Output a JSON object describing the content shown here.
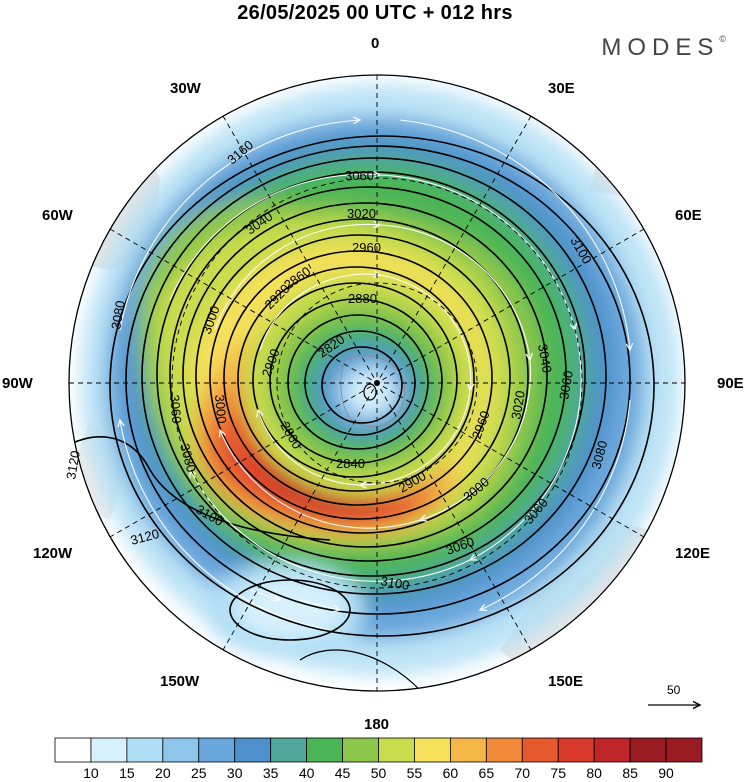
{
  "header": {
    "title": "26/05/2025  00 UTC  + 012 hrs",
    "brand": "MODES",
    "brand_mark": "©"
  },
  "map": {
    "projection": "polar-stereographic-south",
    "longitude_labels": {
      "top": "0",
      "top_right": "30E",
      "right_upper": "60E",
      "right": "90E",
      "right_lower": "120E",
      "bottom_right": "150E",
      "bottom": "180",
      "bottom_left": "150W",
      "left_lower": "120W",
      "left": "90W",
      "left_upper": "60W",
      "top_left": "30W"
    },
    "contour_labels": [
      "3160",
      "3060",
      "3020",
      "3040",
      "3100",
      "2960",
      "2880",
      "3080",
      "2920",
      "3000",
      "2900",
      "2820",
      "3060",
      "3000",
      "2860",
      "2860",
      "3040",
      "2960",
      "3020",
      "3060",
      "3120",
      "3080",
      "2840",
      "2900",
      "3000",
      "3100",
      "3120",
      "3060",
      "3100",
      "3060",
      "3080"
    ],
    "reference_vector": "50",
    "colors": {
      "c10": "#ffffff",
      "c15": "#d6f0fc",
      "c20": "#b0def5",
      "c25": "#8ec5ea",
      "c30": "#6aa7dc",
      "c35": "#4d90cb",
      "c40": "#4fa899",
      "c45": "#4bb557",
      "c50": "#8cc74b",
      "c55": "#c9dc4d",
      "c60": "#f5e05a",
      "c65": "#f5b748",
      "c70": "#ef8a3a",
      "c75": "#e6592f",
      "c80": "#d93a2b",
      "c85": "#c0252a",
      "c90": "#9a1c22",
      "land": "#e9e9e9"
    }
  },
  "legend": {
    "labels": [
      "10",
      "15",
      "20",
      "25",
      "30",
      "35",
      "40",
      "45",
      "50",
      "55",
      "60",
      "65",
      "70",
      "75",
      "80",
      "85",
      "90"
    ],
    "colors": [
      "#ffffff",
      "#d6f0fc",
      "#b0def5",
      "#8ec5ea",
      "#6aa7dc",
      "#4d90cb",
      "#4fa899",
      "#4bb557",
      "#8cc74b",
      "#c9dc4d",
      "#f5e05a",
      "#f5b748",
      "#ef8a3a",
      "#e6592f",
      "#d93a2b",
      "#c0252a",
      "#9a1c22",
      "#9a1c22"
    ]
  }
}
